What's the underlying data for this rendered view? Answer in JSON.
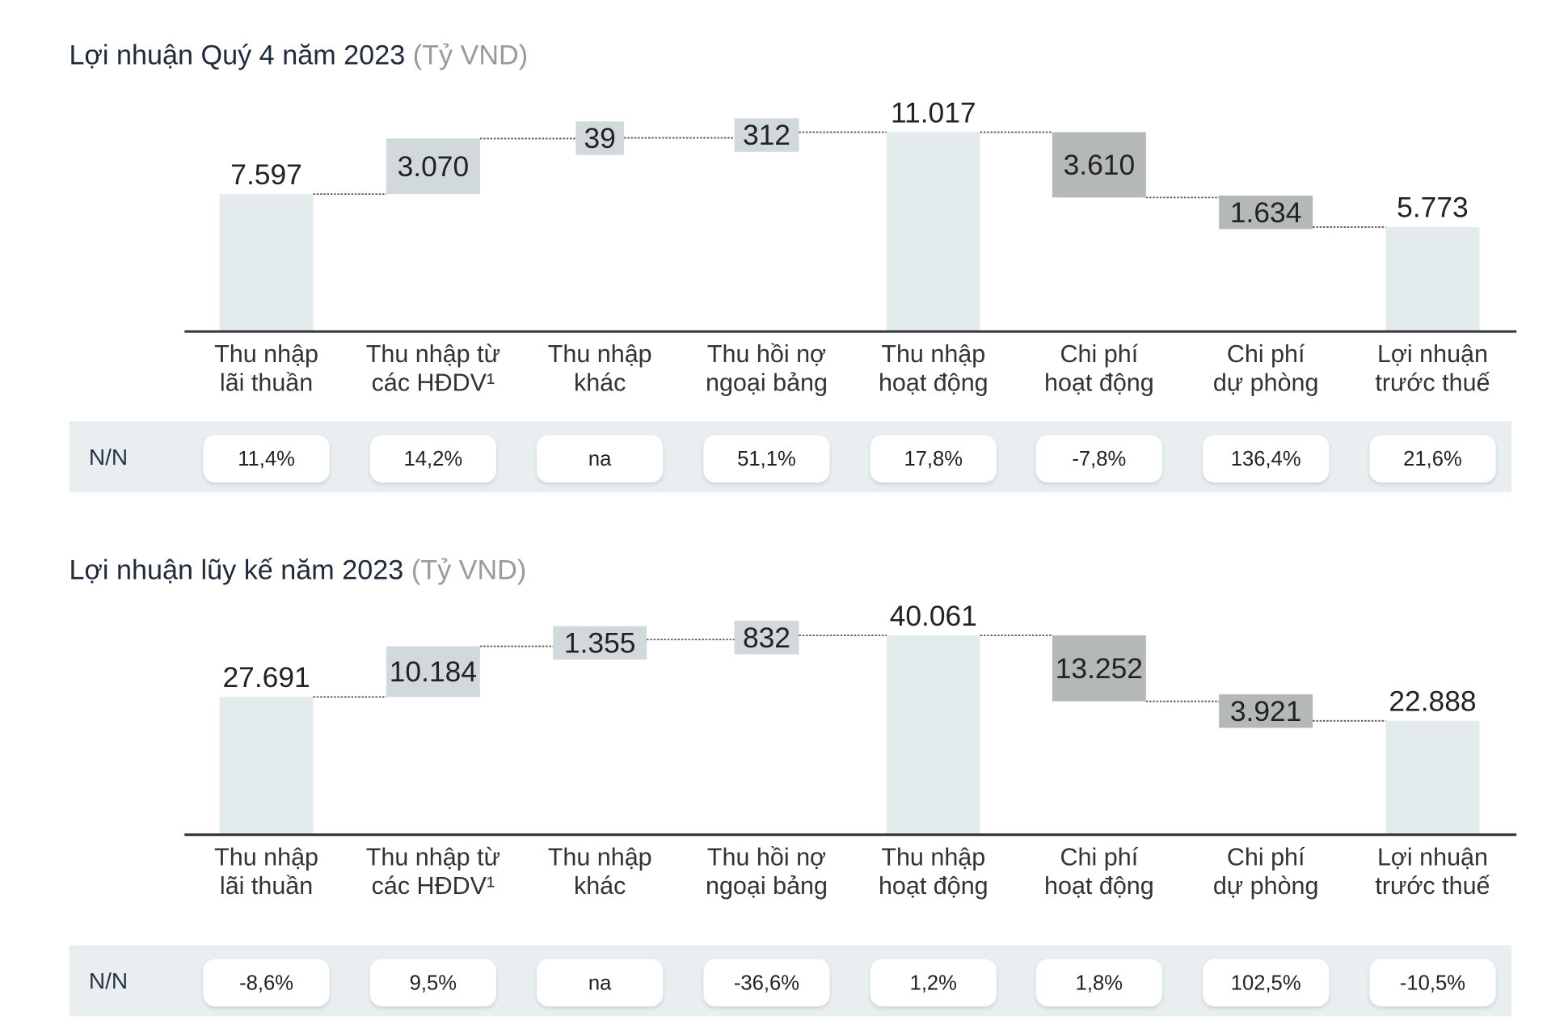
{
  "colors": {
    "total_bar": "#e3ebed",
    "increase_box": "#d2d9dc",
    "decrease_box": "#b4b8b9",
    "band": "#e9eff1",
    "axis": "#333333"
  },
  "chart_data": [
    {
      "type": "bar",
      "subtype": "waterfall",
      "title": "Lợi nhuận Quý 4 năm 2023",
      "unit": "(Tỷ VND)",
      "categories": [
        [
          "Thu nhập",
          "lãi thuần"
        ],
        [
          "Thu nhập từ",
          "các HĐDV¹"
        ],
        [
          "Thu nhập",
          "khác"
        ],
        [
          "Thu hồi nợ",
          "ngoại bảng"
        ],
        [
          "Thu nhập",
          "hoạt động"
        ],
        [
          "Chi phí",
          "hoạt động"
        ],
        [
          "Chi phí",
          "dự phòng"
        ],
        [
          "Lợi nhuận",
          "trước thuế"
        ]
      ],
      "steps": [
        "total",
        "increase",
        "increase",
        "increase",
        "total",
        "decrease",
        "decrease",
        "total"
      ],
      "values": [
        7597,
        3070,
        39,
        312,
        11017,
        3610,
        1634,
        5773
      ],
      "value_labels": [
        "7.597",
        "3.070",
        "39",
        "312",
        "11.017",
        "3.610",
        "1.634",
        "5.773"
      ],
      "yoy_label": "N/N",
      "yoy": [
        "11,4%",
        "14,2%",
        "na",
        "51,1%",
        "17,8%",
        "-7,8%",
        "136,4%",
        "21,6%"
      ]
    },
    {
      "type": "bar",
      "subtype": "waterfall",
      "title": "Lợi nhuận lũy kế năm 2023",
      "unit": "(Tỷ VND)",
      "categories": [
        [
          "Thu nhập",
          "lãi thuần"
        ],
        [
          "Thu nhập từ",
          "các HĐDV¹"
        ],
        [
          "Thu nhập",
          "khác"
        ],
        [
          "Thu hồi nợ",
          "ngoại bảng"
        ],
        [
          "Thu nhập",
          "hoạt động"
        ],
        [
          "Chi phí",
          "hoạt động"
        ],
        [
          "Chi phí",
          "dự phòng"
        ],
        [
          "Lợi nhuận",
          "trước thuế"
        ]
      ],
      "steps": [
        "total",
        "increase",
        "increase",
        "increase",
        "total",
        "decrease",
        "decrease",
        "total"
      ],
      "values": [
        27691,
        10184,
        1355,
        832,
        40061,
        13252,
        3921,
        22888
      ],
      "value_labels": [
        "27.691",
        "10.184",
        "1.355",
        "832",
        "40.061",
        "13.252",
        "3.921",
        "22.888"
      ],
      "yoy_label": "N/N",
      "yoy": [
        "-8,6%",
        "9,5%",
        "na",
        "-36,6%",
        "1,2%",
        "1,8%",
        "102,5%",
        "-10,5%"
      ]
    }
  ]
}
